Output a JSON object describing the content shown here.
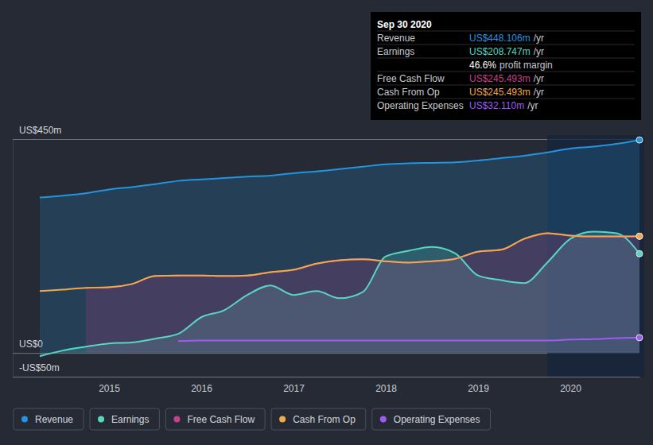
{
  "chart_data": {
    "type": "line",
    "x": [
      2014.25,
      2014.5,
      2014.75,
      2015,
      2015.25,
      2015.5,
      2015.75,
      2016,
      2016.25,
      2016.5,
      2016.75,
      2017,
      2017.25,
      2017.5,
      2017.75,
      2018,
      2018.25,
      2018.5,
      2018.75,
      2019,
      2019.25,
      2019.5,
      2019.75,
      2020,
      2020.25,
      2020.5,
      2020.75
    ],
    "series": [
      {
        "name": "Revenue",
        "color": "#2394df",
        "type": "area",
        "values": [
          327,
          331,
          336,
          344,
          349,
          355,
          362,
          365,
          368,
          371,
          373,
          378,
          382,
          387,
          392,
          397,
          399,
          400,
          401,
          405,
          410,
          415,
          422,
          430,
          434,
          440,
          448.106
        ]
      },
      {
        "name": "Earnings",
        "color": "#58d6c2",
        "type": "area",
        "values": [
          -7,
          5,
          13,
          20,
          22,
          30,
          40,
          75,
          90,
          122,
          142,
          122,
          130,
          115,
          128,
          203,
          215,
          223,
          210,
          163,
          153,
          147,
          190,
          240,
          255,
          252,
          208.747
        ]
      },
      {
        "name": "Free Cash Flow",
        "color": "#c8408b",
        "type": "area",
        "values": [
          null,
          null,
          137,
          138,
          145,
          162,
          163,
          163,
          162,
          163,
          170,
          175,
          188,
          195,
          197,
          193,
          190,
          193,
          198,
          213,
          217,
          240,
          252,
          247,
          245,
          245,
          245.493
        ]
      },
      {
        "name": "Cash From Op",
        "color": "#f0a94b",
        "type": "line",
        "values": [
          130,
          133,
          137,
          138,
          145,
          162,
          163,
          163,
          162,
          163,
          170,
          175,
          188,
          195,
          197,
          193,
          190,
          193,
          198,
          213,
          217,
          240,
          252,
          247,
          245,
          245,
          245.493
        ]
      },
      {
        "name": "Operating Expenses",
        "color": "#9d5cf5",
        "type": "line",
        "values": [
          null,
          null,
          null,
          null,
          null,
          null,
          25,
          26,
          26,
          26,
          26,
          26,
          26,
          26,
          26,
          26,
          26,
          26,
          26,
          26,
          26,
          26,
          26,
          28,
          29,
          31,
          32.11
        ]
      }
    ],
    "xlim": [
      2014.25,
      2020.75
    ],
    "xticks": [
      2015,
      2016,
      2017,
      2018,
      2019,
      2020
    ],
    "ylim": [
      -50,
      450
    ],
    "yticks": [
      {
        "value": 450,
        "label": "US$450m"
      },
      {
        "value": 0,
        "label": "US$0"
      },
      {
        "value": -50,
        "label": "-US$50m"
      }
    ],
    "grid": true,
    "legend": "bottom",
    "annotations": {
      "title": "Sep 30 2020",
      "rows": [
        {
          "label": "Revenue",
          "text": "US$448.106m",
          "unit": "/yr",
          "color": "#2394df"
        },
        {
          "label": "Earnings",
          "text": "US$208.747m",
          "unit": "/yr",
          "color": "#58d6c2"
        },
        {
          "text": "46.6%",
          "unit": "profit margin"
        },
        {
          "label": "Free Cash Flow",
          "text": "US$245.493m",
          "unit": "/yr",
          "color": "#c8408b"
        },
        {
          "label": "Cash From Op",
          "text": "US$245.493m",
          "unit": "/yr",
          "color": "#f0a94b"
        },
        {
          "label": "Operating Expenses",
          "text": "US$32.110m",
          "unit": "/yr",
          "color": "#9d5cf5"
        }
      ]
    }
  }
}
